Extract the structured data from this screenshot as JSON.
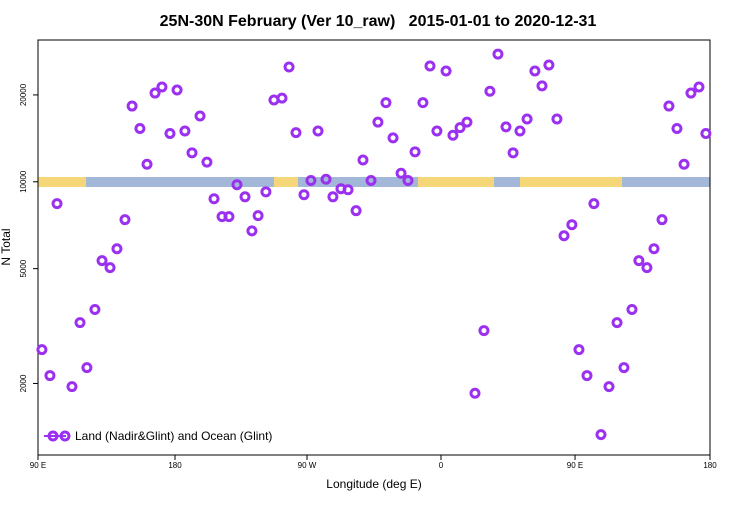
{
  "chart_data": {
    "type": "scatter",
    "title": "25N-30N February (Ver 10_raw)   2015-01-01 to 2020-12-31",
    "x_label": "Longitude (deg E)",
    "y_label": "N Total",
    "xlim": [
      90,
      450
    ],
    "xticks": [
      {
        "value": 90,
        "label": "90 E"
      },
      {
        "value": 163.4,
        "label": "180"
      },
      {
        "value": 234.1,
        "label": "90 W"
      },
      {
        "value": 305.9,
        "label": "0"
      },
      {
        "value": 377.7,
        "label": "90 E"
      },
      {
        "value": 450,
        "label": "180"
      }
    ],
    "ylim": [
      1130,
      31000
    ],
    "y_log": true,
    "yticks": [
      2000,
      5000,
      10000,
      20000
    ],
    "legend_position": "bottom-left",
    "series": [
      {
        "name": "Land (Nadir&Glint) and Ocean (Glint)",
        "color": "#9b30f0",
        "x": [
          92.1,
          96.4,
          100.2,
          108.2,
          112.5,
          116.2,
          120.5,
          124.3,
          128.6,
          132.3,
          136.6,
          140.4,
          144.6,
          148.4,
          152.7,
          156.4,
          160.7,
          164.5,
          168.7,
          172.5,
          176.8,
          180.5,
          184.3,
          188.6,
          192.3,
          196.6,
          200.9,
          204.6,
          207.9,
          212.1,
          216.4,
          220.7,
          224.5,
          228.2,
          232.5,
          236.2,
          240.0,
          244.3,
          248.0,
          252.3,
          256.1,
          260.4,
          264.1,
          268.4,
          272.1,
          276.4,
          280.2,
          284.5,
          288.2,
          292.0,
          296.2,
          300.0,
          303.7,
          308.6,
          312.3,
          316.1,
          319.8,
          324.1,
          328.9,
          332.1,
          336.4,
          340.7,
          344.5,
          348.2,
          352.0,
          356.2,
          360.0,
          363.7,
          368.0,
          371.8,
          376.0,
          379.8,
          384.1,
          387.8,
          391.6,
          395.9,
          400.2,
          403.9,
          408.2,
          411.9,
          416.2,
          420.0,
          424.3,
          428.0,
          432.3,
          436.1,
          439.8,
          444.1,
          447.8
        ],
        "values": [
          2620,
          2130,
          8400,
          1950,
          3250,
          2270,
          3610,
          5330,
          5040,
          5860,
          7390,
          18300,
          15300,
          11500,
          20300,
          21300,
          14700,
          20800,
          15000,
          12600,
          16900,
          11700,
          8730,
          7570,
          7570,
          9770,
          8870,
          6760,
          7630,
          9230,
          19200,
          19500,
          25000,
          14800,
          9020,
          10100,
          15000,
          10200,
          8870,
          9460,
          9380,
          7940,
          11900,
          10100,
          16100,
          18800,
          14200,
          10700,
          10100,
          12700,
          18800,
          25200,
          15000,
          24200,
          14500,
          15400,
          16100,
          1850,
          3050,
          20600,
          27700,
          15500,
          12600,
          15000,
          16500,
          24200,
          21500,
          25400,
          16500,
          6500,
          7100,
          2620,
          2130,
          8400,
          1330,
          1950,
          3250,
          2270,
          3610,
          5330,
          5040,
          5860,
          7390,
          18300,
          15300,
          11500,
          20300,
          21300,
          14700
        ]
      }
    ]
  }
}
